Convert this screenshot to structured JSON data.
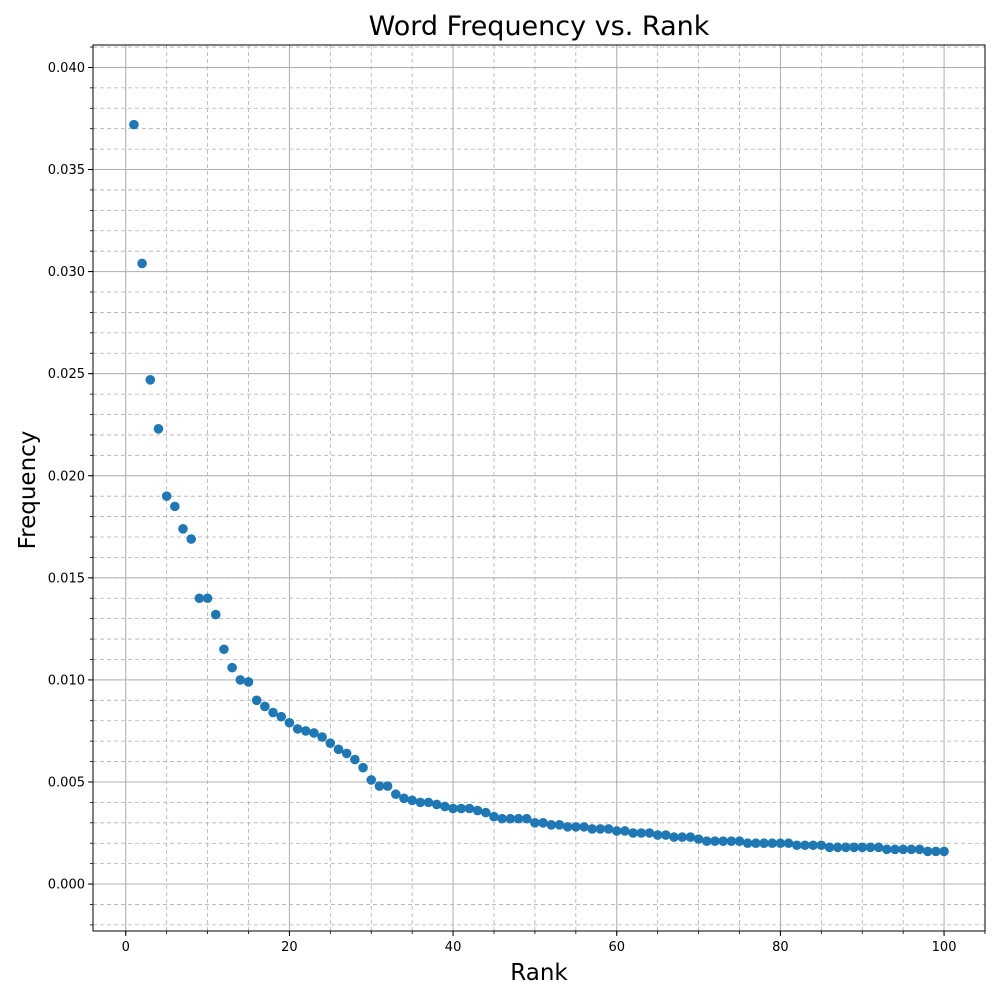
{
  "chart_data": {
    "type": "scatter",
    "title": "Word Frequency vs. Rank",
    "xlabel": "Rank",
    "ylabel": "Frequency",
    "xlim": [
      -4,
      105
    ],
    "ylim": [
      -0.0023,
      0.0411
    ],
    "xticks": [
      0,
      20,
      40,
      60,
      80,
      100
    ],
    "xtick_labels": [
      "0",
      "20",
      "40",
      "60",
      "80",
      "100"
    ],
    "yticks": [
      0.0,
      0.005,
      0.01,
      0.015,
      0.02,
      0.025,
      0.03,
      0.035,
      0.04
    ],
    "ytick_labels": [
      "0.000",
      "0.005",
      "0.010",
      "0.015",
      "0.020",
      "0.025",
      "0.030",
      "0.035",
      "0.040"
    ],
    "x_minor_step": 5,
    "y_minor_step": 0.001,
    "grid": true,
    "marker_color": "#1f77b4",
    "grid_major_color": "#b0b0b0",
    "grid_minor_color": "#b0b0b0",
    "series": [
      {
        "x": [
          1,
          2,
          3,
          4,
          5,
          6,
          7,
          8,
          9,
          10,
          11,
          12,
          13,
          14,
          15,
          16,
          17,
          18,
          19,
          20,
          21,
          22,
          23,
          24,
          25,
          26,
          27,
          28,
          29,
          30,
          31,
          32,
          33,
          34,
          35,
          36,
          37,
          38,
          39,
          40,
          41,
          42,
          43,
          44,
          45,
          46,
          47,
          48,
          49,
          50,
          51,
          52,
          53,
          54,
          55,
          56,
          57,
          58,
          59,
          60,
          61,
          62,
          63,
          64,
          65,
          66,
          67,
          68,
          69,
          70,
          71,
          72,
          73,
          74,
          75,
          76,
          77,
          78,
          79,
          80,
          81,
          82,
          83,
          84,
          85,
          86,
          87,
          88,
          89,
          90,
          91,
          92,
          93,
          94,
          95,
          96,
          97,
          98,
          99,
          100
        ],
        "y": [
          0.0372,
          0.0304,
          0.0247,
          0.0223,
          0.019,
          0.0185,
          0.0174,
          0.0169,
          0.014,
          0.014,
          0.0132,
          0.0115,
          0.0106,
          0.01,
          0.0099,
          0.009,
          0.0087,
          0.0084,
          0.0082,
          0.0079,
          0.0076,
          0.0075,
          0.0074,
          0.0072,
          0.0069,
          0.0066,
          0.0064,
          0.0061,
          0.0057,
          0.0051,
          0.0048,
          0.0048,
          0.0044,
          0.0042,
          0.0041,
          0.004,
          0.004,
          0.0039,
          0.0038,
          0.0037,
          0.0037,
          0.0037,
          0.0036,
          0.0035,
          0.0033,
          0.0032,
          0.0032,
          0.0032,
          0.0032,
          0.003,
          0.003,
          0.0029,
          0.0029,
          0.0028,
          0.0028,
          0.0028,
          0.0027,
          0.0027,
          0.0027,
          0.0026,
          0.0026,
          0.0025,
          0.0025,
          0.0025,
          0.0024,
          0.0024,
          0.0023,
          0.0023,
          0.0023,
          0.0022,
          0.0021,
          0.0021,
          0.0021,
          0.0021,
          0.0021,
          0.002,
          0.002,
          0.002,
          0.002,
          0.002,
          0.002,
          0.0019,
          0.0019,
          0.0019,
          0.0019,
          0.0018,
          0.0018,
          0.0018,
          0.0018,
          0.0018,
          0.0018,
          0.0018,
          0.0017,
          0.0017,
          0.0017,
          0.0017,
          0.0017,
          0.0016,
          0.0016,
          0.0016
        ]
      }
    ]
  }
}
